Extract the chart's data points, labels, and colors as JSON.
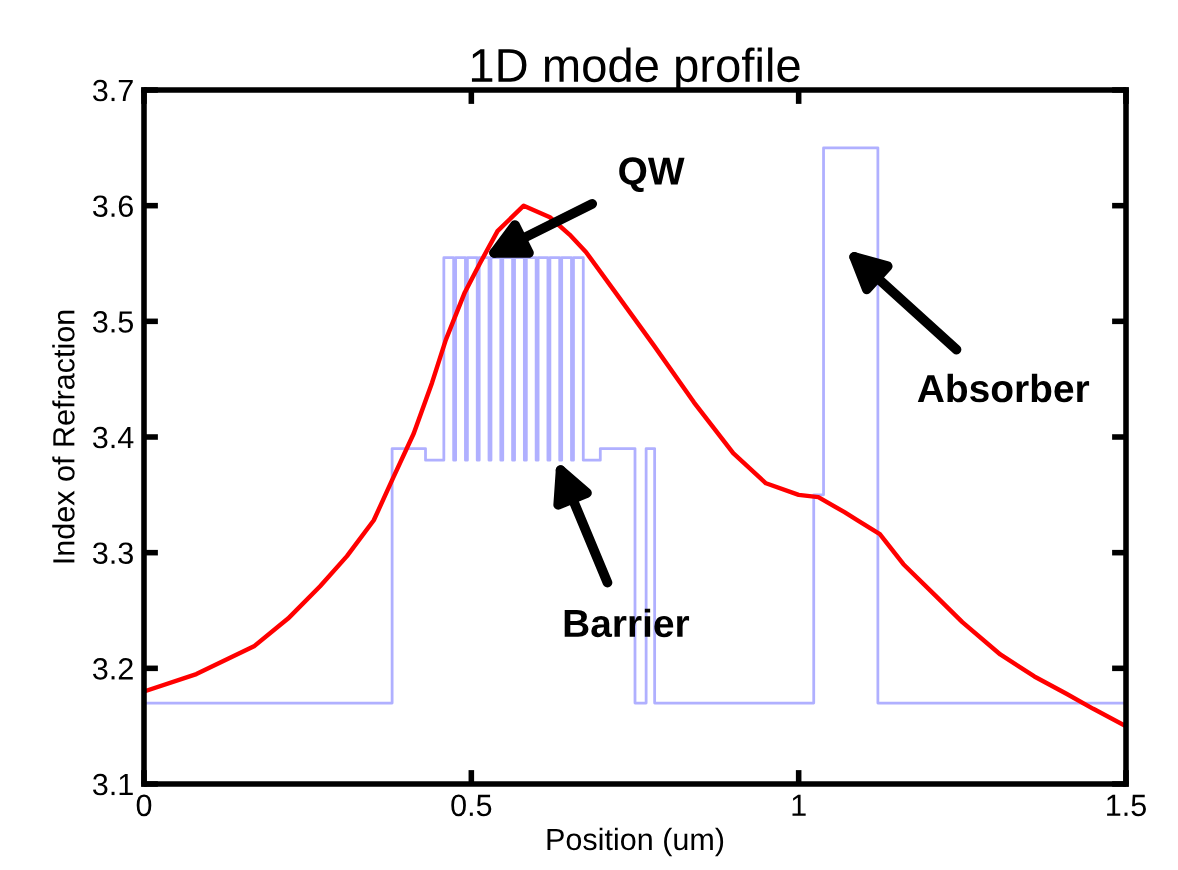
{
  "chart_data": {
    "type": "line",
    "title": "1D mode profile",
    "xlabel": "Position (um)",
    "ylabel": "Index of Refraction",
    "xlim": [
      0,
      1.5
    ],
    "ylim": [
      3.1,
      3.7
    ],
    "xticks": [
      0,
      0.5,
      1,
      1.5
    ],
    "yticks": [
      3.1,
      3.2,
      3.3,
      3.4,
      3.5,
      3.6,
      3.7
    ],
    "grid": false,
    "legend": false,
    "series": [
      {
        "type": "step",
        "color": "#b0b0ff",
        "x": [
          0,
          0.379,
          0.43,
          0.458,
          0.473,
          0.476,
          0.491,
          0.494,
          0.509,
          0.512,
          0.527,
          0.53,
          0.545,
          0.548,
          0.563,
          0.566,
          0.581,
          0.584,
          0.599,
          0.602,
          0.617,
          0.62,
          0.635,
          0.638,
          0.653,
          0.656,
          0.671,
          0.675,
          0.697,
          0.75,
          0.767,
          0.78,
          1.023,
          1.038,
          1.121,
          1.5
        ],
        "values": [
          3.17,
          3.39,
          3.38,
          3.555,
          3.38,
          3.555,
          3.38,
          3.555,
          3.38,
          3.555,
          3.38,
          3.555,
          3.38,
          3.555,
          3.38,
          3.555,
          3.38,
          3.555,
          3.38,
          3.555,
          3.38,
          3.555,
          3.38,
          3.555,
          3.38,
          3.555,
          3.38,
          3.38,
          3.39,
          3.17,
          3.39,
          3.17,
          3.35,
          3.65,
          3.17,
          3.17
        ]
      },
      {
        "color": "#ff0000",
        "x": [
          0,
          0.08,
          0.168,
          0.22,
          0.269,
          0.31,
          0.351,
          0.38,
          0.412,
          0.44,
          0.461,
          0.49,
          0.513,
          0.54,
          0.58,
          0.62,
          0.65,
          0.675,
          0.72,
          0.779,
          0.84,
          0.9,
          0.95,
          1.0,
          1.03,
          1.07,
          1.09,
          1.124,
          1.16,
          1.207,
          1.25,
          1.308,
          1.36,
          1.409,
          1.45,
          1.5
        ],
        "values": [
          3.18,
          3.195,
          3.219,
          3.243,
          3.271,
          3.297,
          3.328,
          3.364,
          3.403,
          3.447,
          3.484,
          3.525,
          3.55,
          3.578,
          3.6,
          3.59,
          3.575,
          3.56,
          3.525,
          3.479,
          3.43,
          3.386,
          3.36,
          3.35,
          3.348,
          3.335,
          3.328,
          3.316,
          3.29,
          3.264,
          3.24,
          3.212,
          3.193,
          3.178,
          3.165,
          3.15
        ]
      }
    ],
    "annotations": [
      {
        "text": "QW",
        "x": 0.52,
        "y": 3.555
      },
      {
        "text": "Barrier",
        "x": 0.63,
        "y": 3.38
      },
      "Absorber"
    ]
  }
}
